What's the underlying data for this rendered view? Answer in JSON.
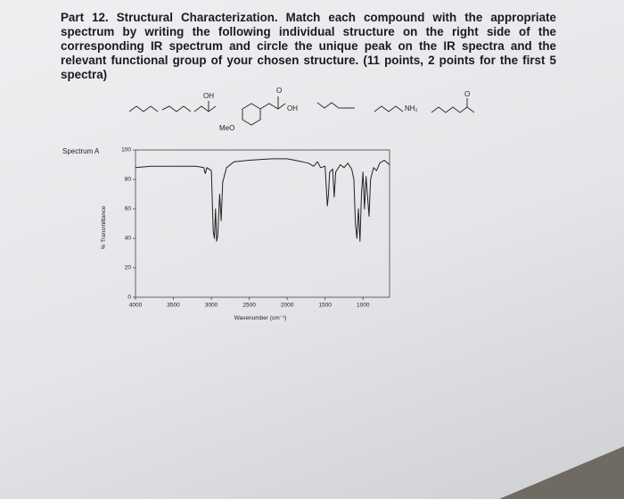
{
  "header": {
    "text": "Part 12. Structural Characterization. Match each compound with the appropriate spectrum by writing the following individual structure on the right side of the corresponding IR spectrum and circle the unique peak on the IR spectra and the relevant functional group of your chosen structure. (11 points, 2 points for the first 5 spectra)"
  },
  "structures": {
    "labels": [
      "OH",
      "MeO",
      "O",
      "OH",
      "NH₂",
      "O"
    ]
  },
  "spectrum": {
    "title": "Spectrum A",
    "xlabel": "Wavenumber (cm⁻¹)",
    "ylabel": "% Transmittance",
    "xlim": [
      4000,
      650
    ],
    "ylim": [
      0,
      100
    ],
    "xticks": [
      4000,
      3500,
      3000,
      2500,
      2000,
      1500,
      1000
    ],
    "yticks": [
      0,
      20,
      40,
      60,
      80,
      100
    ],
    "x": [
      4000,
      3800,
      3500,
      3200,
      3100,
      3080,
      3060,
      3000,
      2975,
      2960,
      2945,
      2930,
      2915,
      2890,
      2870,
      2850,
      2800,
      2700,
      2500,
      2200,
      2000,
      1900,
      1800,
      1720,
      1650,
      1600,
      1560,
      1500,
      1470,
      1455,
      1440,
      1400,
      1380,
      1360,
      1300,
      1250,
      1200,
      1150,
      1120,
      1100,
      1080,
      1060,
      1040,
      1020,
      1000,
      980,
      960,
      920,
      900,
      860,
      820,
      780,
      720,
      650
    ],
    "values": [
      88,
      89,
      89,
      89,
      88,
      84,
      88,
      86,
      45,
      40,
      60,
      38,
      42,
      70,
      52,
      78,
      88,
      92,
      93,
      94,
      94,
      93,
      92,
      91,
      89,
      92,
      88,
      89,
      62,
      70,
      85,
      87,
      68,
      85,
      90,
      88,
      91,
      87,
      80,
      50,
      40,
      60,
      38,
      70,
      85,
      60,
      82,
      55,
      80,
      88,
      86,
      91,
      93,
      90
    ],
    "color": "#222222"
  }
}
